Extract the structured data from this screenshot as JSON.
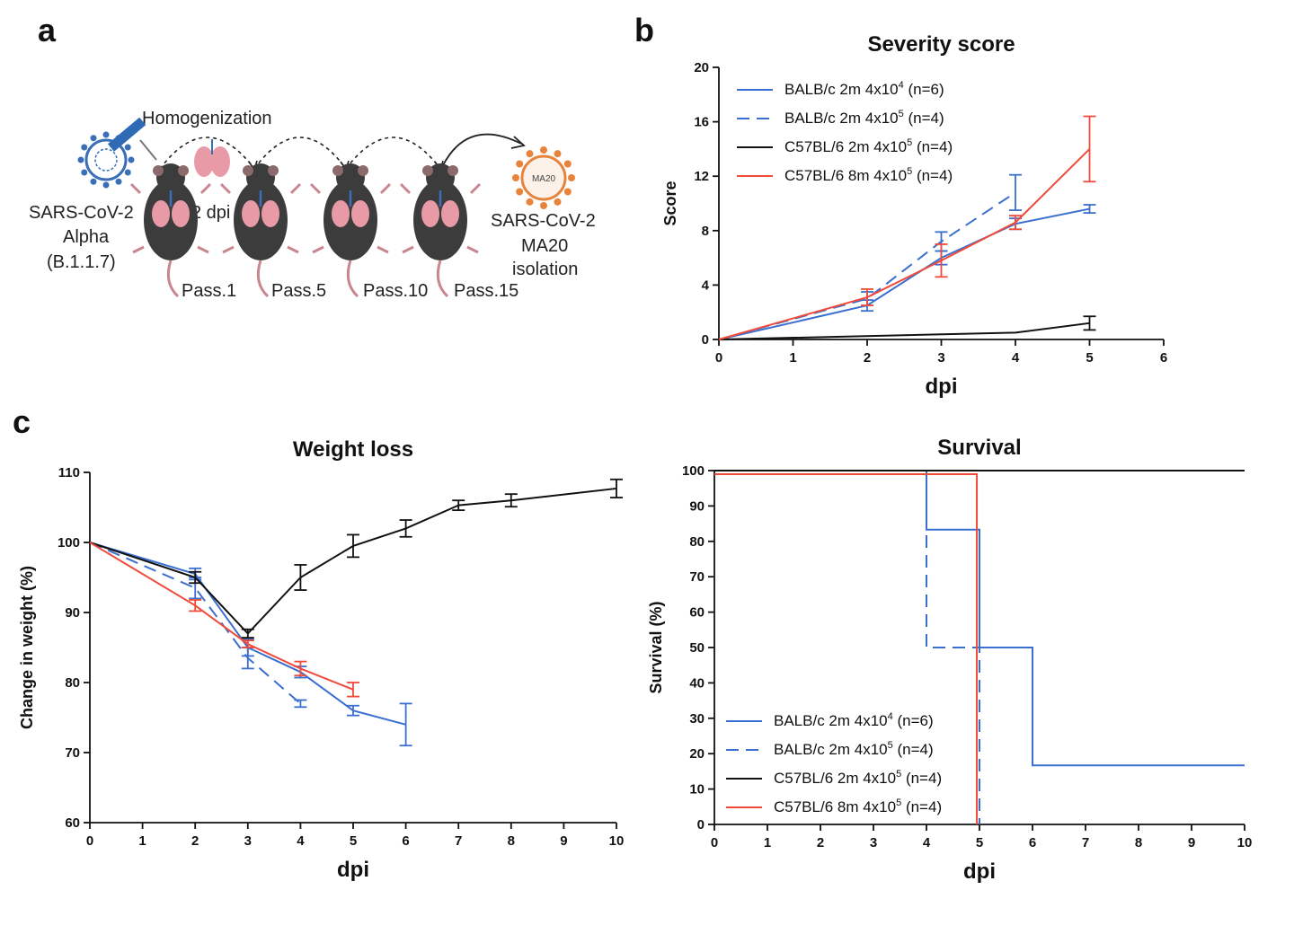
{
  "panel_labels": {
    "a": "a",
    "b": "b",
    "c": "c"
  },
  "diagram": {
    "homogenization": "Homogenization",
    "dpi": "2 dpi",
    "source_virus": [
      "SARS-CoV-2",
      "Alpha",
      "(B.1.1.7)"
    ],
    "result_virus": [
      "SARS-CoV-2",
      "MA20",
      "isolation"
    ],
    "virus_badge": "MA20",
    "passages": [
      "Pass.1",
      "Pass.5",
      "Pass.10",
      "Pass.15"
    ],
    "colors": {
      "source_virus": "#3a6fb8",
      "result_virus": "#e8833a",
      "lung": "#e89aa6",
      "mouse": "#3c3c3c",
      "tail": "#c9868e"
    }
  },
  "chart_data": [
    {
      "id": "severity",
      "type": "line",
      "title": "Severity score",
      "xlabel": "dpi",
      "ylabel": "Score",
      "xlim": [
        0,
        6
      ],
      "ylim": [
        0,
        20
      ],
      "xticks": [
        0,
        1,
        2,
        3,
        4,
        5,
        6
      ],
      "yticks": [
        0,
        4,
        8,
        12,
        16,
        20
      ],
      "legend_position": "top-left",
      "series": [
        {
          "name": "BALB/c 2m 4x10^4 (n=6)",
          "color": "#3a6fd0",
          "dash": false,
          "x": [
            0,
            2,
            3,
            4,
            5
          ],
          "y": [
            0,
            2.5,
            6,
            8.5,
            9.6
          ],
          "err": [
            0,
            0.4,
            0.5,
            0.4,
            0.3
          ]
        },
        {
          "name": "BALB/c 2m 4x10^5 (n=4)",
          "color": "#3a6fd0",
          "dash": true,
          "x": [
            0,
            2,
            3,
            4
          ],
          "y": [
            0,
            3,
            7.2,
            10.8
          ],
          "err": [
            0,
            0.5,
            0.7,
            1.3
          ]
        },
        {
          "name": "C57BL/6 2m 4x10^5 (n=4)",
          "color": "#111111",
          "dash": false,
          "x": [
            0,
            4,
            5
          ],
          "y": [
            0,
            0.5,
            1.2
          ],
          "err": [
            0,
            0,
            0.5
          ]
        },
        {
          "name": "C57BL/6 8m 4x10^5 (n=4)",
          "color": "#f04a3a",
          "dash": false,
          "x": [
            0,
            2,
            3,
            4,
            5
          ],
          "y": [
            0,
            3.1,
            5.8,
            8.6,
            14
          ],
          "err": [
            0,
            0.6,
            1.2,
            0.5,
            2.4
          ]
        }
      ]
    },
    {
      "id": "weight",
      "type": "line",
      "title": "Weight loss",
      "xlabel": "dpi",
      "ylabel": "Change in weight (%)",
      "xlim": [
        0,
        10
      ],
      "ylim": [
        60,
        110
      ],
      "xticks": [
        0,
        1,
        2,
        3,
        4,
        5,
        6,
        7,
        8,
        9,
        10
      ],
      "yticks": [
        60,
        70,
        80,
        90,
        100,
        110
      ],
      "series": [
        {
          "name": "BALB/c 2m 4x10^4 (n=6)",
          "color": "#3a6fd0",
          "dash": false,
          "x": [
            0,
            2,
            3,
            4,
            5,
            6
          ],
          "y": [
            100,
            95.5,
            85,
            81.5,
            76,
            74
          ],
          "err": [
            0,
            0.8,
            1.2,
            0.8,
            0.7,
            3
          ]
        },
        {
          "name": "BALB/c 2m 4x10^5 (n=4)",
          "color": "#3a6fd0",
          "dash": true,
          "x": [
            0,
            2,
            3,
            4
          ],
          "y": [
            100,
            93.5,
            83.5,
            77
          ],
          "err": [
            0,
            1.5,
            1.5,
            0.5
          ]
        },
        {
          "name": "C57BL/6 2m 4x10^5 (n=4)",
          "color": "#111111",
          "dash": false,
          "x": [
            0,
            2,
            3,
            4,
            5,
            6,
            7,
            8,
            10
          ],
          "y": [
            100,
            95,
            87,
            95,
            99.5,
            102,
            105.3,
            106,
            107.7
          ],
          "err": [
            0,
            0.8,
            0.6,
            1.8,
            1.6,
            1.2,
            0.7,
            0.9,
            1.3
          ]
        },
        {
          "name": "C57BL/6 8m 4x10^5 (n=4)",
          "color": "#f04a3a",
          "dash": false,
          "x": [
            0,
            2,
            3,
            4,
            5
          ],
          "y": [
            100,
            91,
            85.5,
            82,
            79
          ],
          "err": [
            0,
            0.8,
            0.5,
            1,
            1
          ]
        }
      ]
    },
    {
      "id": "survival",
      "type": "line",
      "title": "Survival",
      "xlabel": "dpi",
      "ylabel": "Survival (%)",
      "xlim": [
        0,
        10
      ],
      "ylim": [
        0,
        100
      ],
      "xticks": [
        0,
        1,
        2,
        3,
        4,
        5,
        6,
        7,
        8,
        9,
        10
      ],
      "yticks": [
        0,
        10,
        20,
        30,
        40,
        50,
        60,
        70,
        80,
        90,
        100
      ],
      "step": true,
      "legend_position": "bottom-left",
      "series": [
        {
          "name": "BALB/c 2m 4x10^4 (n=6)",
          "color": "#3a6fd0",
          "dash": false,
          "x": [
            0,
            4,
            5,
            6,
            10
          ],
          "y": [
            100,
            83.3,
            50,
            16.7,
            16.7
          ]
        },
        {
          "name": "BALB/c 2m 4x10^5 (n=4)",
          "color": "#3a6fd0",
          "dash": true,
          "x": [
            0,
            4,
            5
          ],
          "y": [
            100,
            50,
            0
          ]
        },
        {
          "name": "C57BL/6 2m 4x10^5 (n=4)",
          "color": "#111111",
          "dash": false,
          "x": [
            0,
            10
          ],
          "y": [
            100,
            100
          ]
        },
        {
          "name": "C57BL/6 8m 4x10^5 (n=4)",
          "color": "#f04a3a",
          "dash": false,
          "x": [
            0,
            4.95
          ],
          "y": [
            99,
            0
          ]
        }
      ]
    }
  ],
  "legend_labels": [
    {
      "base": "BALB/c 2m 4x10",
      "sup": "4",
      "tail": " (n=6)"
    },
    {
      "base": "BALB/c 2m 4x10",
      "sup": "5",
      "tail": " (n=4)"
    },
    {
      "base": "C57BL/6 2m 4x10",
      "sup": "5",
      "tail": " (n=4)"
    },
    {
      "base": "C57BL/6 8m 4x10",
      "sup": "5",
      "tail": " (n=4)"
    }
  ]
}
